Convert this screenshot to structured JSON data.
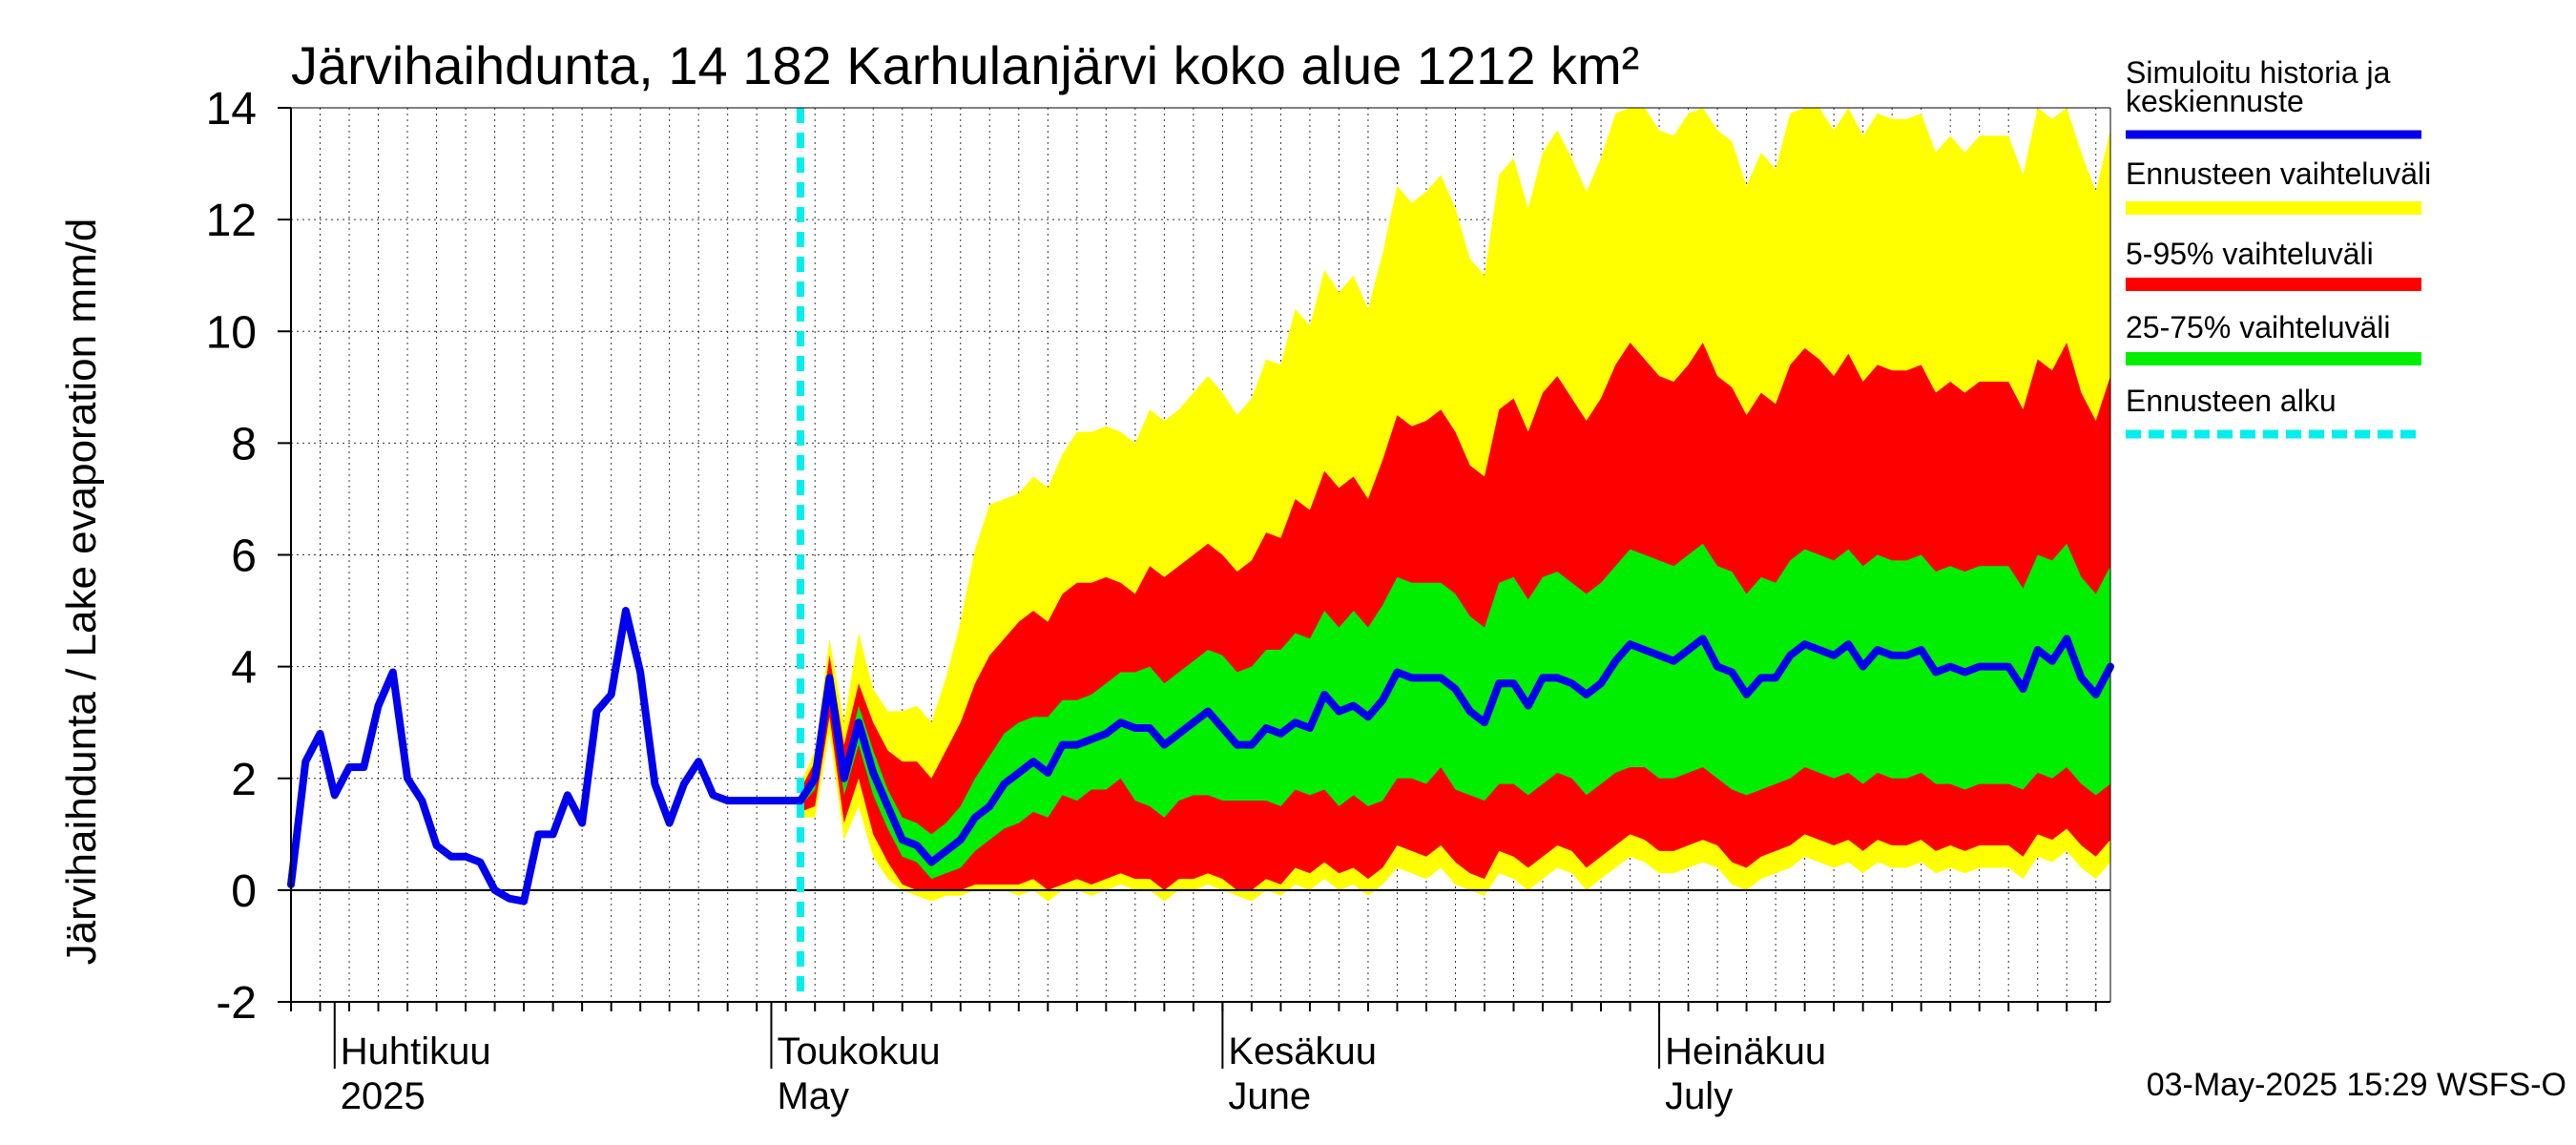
{
  "chart_data": {
    "type": "area",
    "title": "Järvihaihdunta, 14 182 Karhulanjärvi koko alue 1212 km²",
    "ylabel": "Järvihaihdunta / Lake evaporation   mm/d",
    "ylim": [
      -2,
      14
    ],
    "y_ticks": [
      "-2",
      "0",
      "2",
      "4",
      "6",
      "8",
      "10",
      "12",
      "14"
    ],
    "x_range": [
      "2025-03-29",
      "2025-08-01"
    ],
    "month_labels": [
      {
        "date": "2025-04-01",
        "fi": "Huhtikuu",
        "en": "2025"
      },
      {
        "date": "2025-05-01",
        "fi": "Toukokuu",
        "en": "May"
      },
      {
        "date": "2025-06-01",
        "fi": "Kesäkuu",
        "en": "June"
      },
      {
        "date": "2025-07-01",
        "fi": "Heinäkuu",
        "en": "July"
      }
    ],
    "forecast_start": "2025-05-03",
    "grid": true,
    "legend_position": "right",
    "legend": [
      {
        "label": "Simuloitu historia ja keskiennuste",
        "color": "#0000ee",
        "style": "line"
      },
      {
        "label": "Ennusteen vaihteluväli",
        "color": "#ffff00",
        "style": "band"
      },
      {
        "label": "5-95% vaihteluväli",
        "color": "#ff0000",
        "style": "band"
      },
      {
        "label": "25-75% vaihteluväli",
        "color": "#00ee00",
        "style": "band"
      },
      {
        "label": "Ennusteen alku",
        "color": "#00eeee",
        "style": "dashed"
      }
    ],
    "timestamp": "03-May-2025 15:29 WSFS-O",
    "history": {
      "start": "2025-03-29",
      "values": [
        0.1,
        2.3,
        2.8,
        1.7,
        2.2,
        2.2,
        3.3,
        3.9,
        2.0,
        1.6,
        0.8,
        0.6,
        0.6,
        0.5,
        0.0,
        -0.15,
        -0.2,
        1.0,
        1.0,
        1.7,
        1.2,
        3.2,
        3.5,
        5.0,
        3.9,
        1.9,
        1.2,
        1.9,
        2.3,
        1.7,
        1.6
      ]
    },
    "forecast": {
      "start": "2025-05-03",
      "median": [
        1.6,
        2.0,
        3.8,
        2.0,
        3.0,
        2.1,
        1.5,
        0.9,
        0.8,
        0.5,
        0.7,
        0.9,
        1.3,
        1.5,
        1.9,
        2.1,
        2.3,
        2.1,
        2.6,
        2.6,
        2.7,
        2.8,
        3.0,
        2.9,
        2.9,
        2.6,
        2.8,
        3.0,
        3.2,
        2.9,
        2.6,
        2.6,
        2.9,
        2.8,
        3.0,
        2.9,
        3.5,
        3.2,
        3.3,
        3.1,
        3.4,
        3.9,
        3.8,
        3.8,
        3.8,
        3.6,
        3.2,
        3.0,
        3.7,
        3.7,
        3.3,
        3.8,
        3.8,
        3.7,
        3.5,
        3.7,
        4.1,
        4.4,
        4.3,
        4.2,
        4.1,
        4.3,
        4.5,
        4.0,
        3.9,
        3.5,
        3.8,
        3.8,
        4.2,
        4.4,
        4.3,
        4.2,
        4.4,
        4.0,
        4.3,
        4.2,
        4.2,
        4.3,
        3.9,
        4.0,
        3.9,
        4.0,
        4.0,
        4.0,
        3.6,
        4.3,
        4.1,
        4.5,
        3.8,
        3.5,
        4.0
      ],
      "p25": [
        1.5,
        1.8,
        3.5,
        1.7,
        2.6,
        1.7,
        1.1,
        0.6,
        0.5,
        0.2,
        0.3,
        0.4,
        0.7,
        0.9,
        1.1,
        1.2,
        1.4,
        1.3,
        1.7,
        1.6,
        1.8,
        1.8,
        2.0,
        1.6,
        1.5,
        1.3,
        1.6,
        1.7,
        1.7,
        1.6,
        1.6,
        1.6,
        1.6,
        1.5,
        1.8,
        1.7,
        1.8,
        1.5,
        1.7,
        1.5,
        1.6,
        2.0,
        2.0,
        1.9,
        2.2,
        1.8,
        1.7,
        1.6,
        1.9,
        1.9,
        1.7,
        1.9,
        2.1,
        2.0,
        1.7,
        1.9,
        2.1,
        2.2,
        2.2,
        2.0,
        2.0,
        2.1,
        2.2,
        2.0,
        1.8,
        1.7,
        1.8,
        1.9,
        2.0,
        2.2,
        2.1,
        2.0,
        2.1,
        1.9,
        2.1,
        2.0,
        2.0,
        2.1,
        1.9,
        1.9,
        1.8,
        1.9,
        1.9,
        1.9,
        1.8,
        2.1,
        2.0,
        2.2,
        1.9,
        1.7,
        1.9
      ],
      "p75": [
        1.7,
        2.1,
        3.9,
        2.2,
        3.3,
        2.5,
        1.8,
        1.3,
        1.2,
        1.0,
        1.2,
        1.5,
        2.0,
        2.4,
        2.8,
        3.0,
        3.1,
        3.1,
        3.4,
        3.4,
        3.5,
        3.7,
        3.9,
        3.9,
        4.0,
        3.7,
        3.9,
        4.1,
        4.3,
        4.2,
        3.9,
        4.0,
        4.3,
        4.3,
        4.6,
        4.5,
        5.0,
        4.7,
        5.0,
        4.7,
        5.1,
        5.6,
        5.5,
        5.5,
        5.5,
        5.3,
        4.9,
        4.7,
        5.5,
        5.6,
        5.2,
        5.6,
        5.7,
        5.5,
        5.3,
        5.5,
        5.8,
        6.1,
        6.0,
        5.9,
        5.8,
        6.0,
        6.2,
        5.8,
        5.7,
        5.3,
        5.6,
        5.5,
        5.9,
        6.1,
        6.0,
        5.9,
        6.1,
        5.8,
        6.0,
        5.9,
        5.9,
        6.0,
        5.7,
        5.8,
        5.7,
        5.8,
        5.8,
        5.8,
        5.4,
        6.0,
        5.9,
        6.2,
        5.6,
        5.3,
        5.8
      ],
      "p05": [
        1.4,
        1.5,
        3.1,
        1.2,
        2.0,
        1.0,
        0.5,
        0.1,
        0.0,
        0.0,
        0.0,
        0.0,
        0.1,
        0.1,
        0.1,
        0.1,
        0.2,
        0.0,
        0.1,
        0.2,
        0.1,
        0.2,
        0.3,
        0.2,
        0.2,
        0.0,
        0.2,
        0.2,
        0.3,
        0.2,
        0.0,
        0.0,
        0.2,
        0.1,
        0.4,
        0.3,
        0.5,
        0.3,
        0.4,
        0.2,
        0.4,
        0.8,
        0.7,
        0.6,
        0.8,
        0.5,
        0.3,
        0.2,
        0.7,
        0.6,
        0.4,
        0.6,
        0.8,
        0.7,
        0.4,
        0.6,
        0.8,
        1.0,
        0.9,
        0.7,
        0.7,
        0.8,
        0.9,
        0.8,
        0.5,
        0.4,
        0.6,
        0.7,
        0.8,
        1.0,
        0.9,
        0.8,
        0.9,
        0.7,
        0.9,
        0.8,
        0.8,
        0.9,
        0.7,
        0.8,
        0.7,
        0.8,
        0.8,
        0.8,
        0.6,
        1.0,
        0.9,
        1.1,
        0.8,
        0.6,
        0.9
      ],
      "p95": [
        1.8,
        2.3,
        4.2,
        2.6,
        3.7,
        3.0,
        2.5,
        2.3,
        2.3,
        2.0,
        2.5,
        3.0,
        3.7,
        4.2,
        4.5,
        4.8,
        5.0,
        4.8,
        5.3,
        5.5,
        5.5,
        5.6,
        5.5,
        5.3,
        5.8,
        5.6,
        5.8,
        6.0,
        6.2,
        6.0,
        5.7,
        5.9,
        6.4,
        6.3,
        7.0,
        6.8,
        7.5,
        7.2,
        7.4,
        7.0,
        7.7,
        8.5,
        8.3,
        8.4,
        8.6,
        8.2,
        7.6,
        7.4,
        8.6,
        8.8,
        8.2,
        8.9,
        9.2,
        8.8,
        8.4,
        8.8,
        9.4,
        9.8,
        9.5,
        9.2,
        9.1,
        9.4,
        9.8,
        9.2,
        9.0,
        8.5,
        8.9,
        8.7,
        9.4,
        9.7,
        9.5,
        9.2,
        9.6,
        9.1,
        9.4,
        9.3,
        9.3,
        9.4,
        8.9,
        9.1,
        8.9,
        9.1,
        9.1,
        9.1,
        8.6,
        9.5,
        9.3,
        9.8,
        8.9,
        8.4,
        9.2
      ],
      "min": [
        1.3,
        1.3,
        2.8,
        0.9,
        1.5,
        0.6,
        0.2,
        0.0,
        -0.1,
        -0.2,
        -0.1,
        -0.1,
        0.0,
        0.0,
        0.0,
        -0.1,
        0.0,
        -0.2,
        0.0,
        0.0,
        -0.1,
        0.0,
        0.1,
        0.0,
        0.0,
        -0.2,
        0.0,
        0.0,
        0.1,
        0.0,
        -0.1,
        -0.2,
        0.0,
        -0.1,
        0.1,
        0.0,
        0.2,
        0.0,
        0.1,
        -0.1,
        0.1,
        0.4,
        0.3,
        0.2,
        0.4,
        0.1,
        0.0,
        -0.1,
        0.3,
        0.2,
        0.0,
        0.2,
        0.4,
        0.3,
        0.0,
        0.2,
        0.4,
        0.6,
        0.5,
        0.3,
        0.3,
        0.4,
        0.5,
        0.4,
        0.1,
        0.0,
        0.2,
        0.3,
        0.4,
        0.6,
        0.5,
        0.4,
        0.5,
        0.3,
        0.5,
        0.4,
        0.4,
        0.5,
        0.3,
        0.4,
        0.3,
        0.4,
        0.4,
        0.4,
        0.2,
        0.6,
        0.5,
        0.7,
        0.4,
        0.2,
        0.5
      ],
      "max": [
        1.9,
        2.5,
        4.5,
        3.0,
        4.6,
        3.6,
        3.2,
        3.2,
        3.3,
        3.0,
        3.8,
        4.8,
        6.1,
        6.9,
        7.0,
        7.1,
        7.4,
        7.2,
        7.8,
        8.2,
        8.2,
        8.3,
        8.2,
        8.0,
        8.6,
        8.4,
        8.6,
        8.9,
        9.2,
        8.9,
        8.5,
        8.8,
        9.5,
        9.4,
        10.4,
        10.1,
        11.1,
        10.7,
        11.0,
        10.4,
        11.4,
        12.6,
        12.3,
        12.5,
        12.8,
        12.2,
        11.3,
        11.0,
        12.8,
        13.1,
        12.2,
        13.2,
        13.6,
        13.1,
        12.5,
        13.1,
        13.9,
        14.0,
        14.0,
        13.6,
        13.5,
        13.9,
        14.0,
        13.6,
        13.4,
        12.6,
        13.2,
        12.9,
        13.9,
        14.0,
        14.0,
        13.6,
        14.0,
        13.5,
        13.9,
        13.8,
        13.8,
        13.9,
        13.2,
        13.5,
        13.2,
        13.5,
        13.5,
        13.5,
        12.8,
        14.0,
        13.8,
        14.0,
        13.2,
        12.5,
        13.6
      ]
    }
  }
}
